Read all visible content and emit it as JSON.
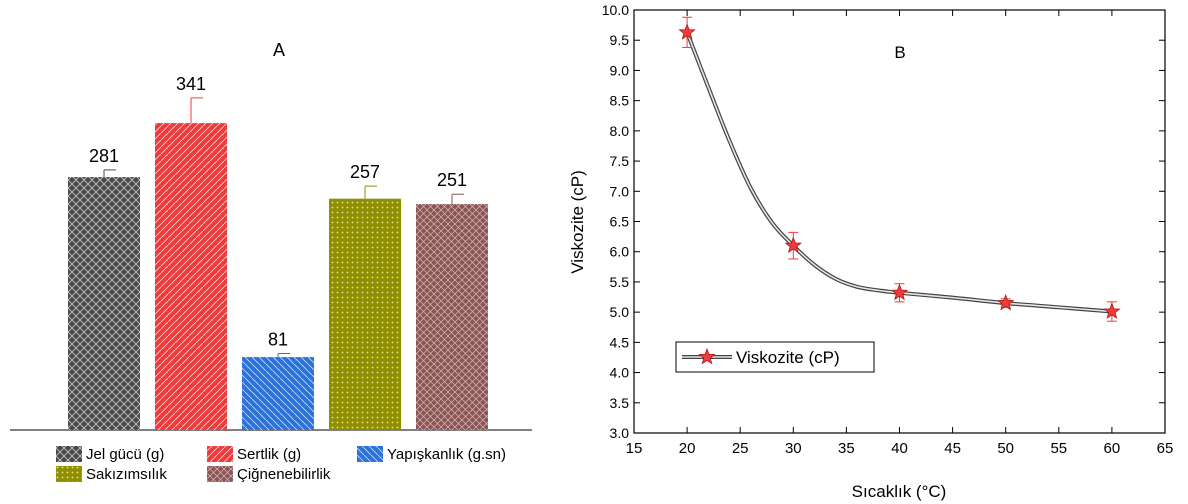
{
  "chart_data": [
    {
      "type": "bar",
      "annotation": "A",
      "categories": [
        "Jel gücü (g)",
        "Sertlik (g)",
        "Yapışkanlık (g.sn)",
        "Sakızımsılık",
        "Çiğnenebilirlik"
      ],
      "values": [
        281,
        341,
        81,
        257,
        251
      ],
      "errors": [
        8,
        28,
        4,
        14,
        11
      ],
      "colors": [
        "#4a4a4a",
        "#ee3c3c",
        "#2d72d8",
        "#8f8f00",
        "#8a5555"
      ],
      "ylim": [
        0,
        400
      ],
      "legend": {
        "placement": "bottom",
        "items": [
          "Jel gücü (g)",
          "Sertlik (g)",
          "Yapışkanlık (g.sn)",
          "Sakızımsılık",
          "Çiğnenebilirlik"
        ]
      }
    },
    {
      "type": "line",
      "annotation": "B",
      "xlabel": "Sıcaklık (°C)",
      "ylabel": "Viskozite (cP)",
      "xlim": [
        15,
        65
      ],
      "ylim": [
        3.0,
        10.0
      ],
      "xticks": [
        "15",
        "20",
        "25",
        "30",
        "35",
        "40",
        "45",
        "50",
        "55",
        "60",
        "65"
      ],
      "yticks": [
        "3.0",
        "3.5",
        "4.0",
        "4.5",
        "5.0",
        "5.5",
        "6.0",
        "6.5",
        "7.0",
        "7.5",
        "8.0",
        "8.5",
        "9.0",
        "9.5",
        "10.0"
      ],
      "series": [
        {
          "name": "Viskozite (cP)",
          "x": [
            20,
            30,
            40,
            50,
            60
          ],
          "y": [
            9.63,
            6.1,
            5.32,
            5.15,
            5.01
          ],
          "errors": [
            0.25,
            0.22,
            0.15,
            0.07,
            0.16
          ],
          "color": "#ee3c3c"
        }
      ],
      "fit_curve": {
        "x": [
          20,
          22,
          24,
          26,
          28,
          30,
          32,
          34,
          36,
          38,
          40,
          45,
          50,
          55,
          60
        ],
        "y": [
          9.63,
          8.72,
          7.83,
          7.05,
          6.48,
          6.1,
          5.78,
          5.55,
          5.42,
          5.36,
          5.32,
          5.24,
          5.15,
          5.08,
          5.01
        ]
      },
      "legend": {
        "placement": "lower-left"
      }
    }
  ]
}
